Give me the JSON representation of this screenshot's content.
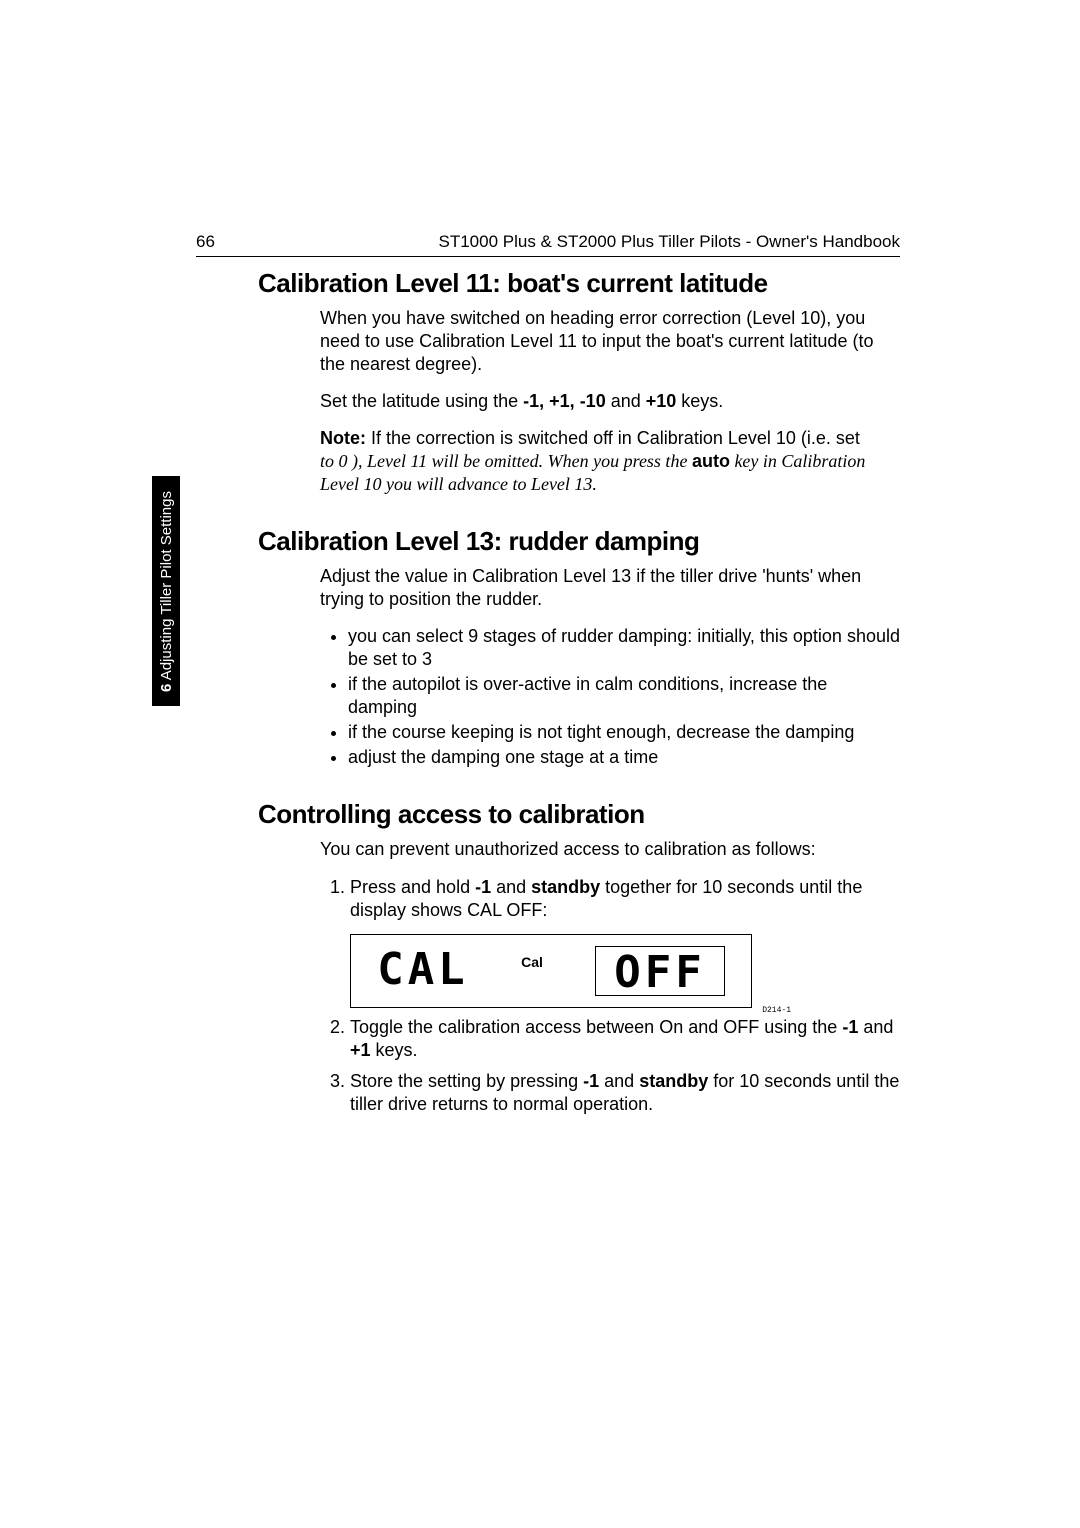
{
  "page_number": "66",
  "running_head": "ST1000 Plus & ST2000 Plus Tiller Pilots - Owner's Handbook",
  "side_tab_chapter": "6",
  "side_tab_text": "Adjusting Tiller Pilot Settings",
  "section1": {
    "title": "Calibration Level 11: boat's current latitude",
    "p1": "When you have switched on heading error correction (Level 10), you need to use Calibration Level 11 to input the boat's current latitude (to the nearest degree).",
    "p2_pre": "Set the latitude using the ",
    "p2_keys": "-1, +1, -10",
    "p2_mid": " and ",
    "p2_key_last": "+10",
    "p2_post": " keys.",
    "note_pre": "Note:",
    "note_a": " If the correction is switched off in Calibration Level 10 (i.e. set",
    "note_b": "to  0  ), Level 11 will be omitted. When you press the ",
    "note_key": "auto",
    "note_c": " key in Calibration Level 10 you will advance to Level 13."
  },
  "section2": {
    "title": "Calibration Level 13: rudder damping",
    "p1": "Adjust the value in Calibration Level 13 if the tiller drive 'hunts' when trying to position the rudder.",
    "b1": "you can select 9 stages of rudder damping: initially, this option should be set to 3",
    "b2": "if the autopilot is over-active in calm conditions, increase the damping",
    "b3": "if the course keeping is not tight enough, decrease the damping",
    "b4": "adjust the damping one stage at a time"
  },
  "section3": {
    "title": "Controlling access to calibration",
    "p1": "You can prevent unauthorized access to calibration as follows:",
    "s1_a": "Press and hold ",
    "s1_k1": "-1",
    "s1_b": " and ",
    "s1_k2": "standby",
    "s1_c": " together for 10 seconds until the display shows ",
    "s1_d": "CAL OFF",
    "s1_e": ":",
    "s2_a": "Toggle the calibration access between ",
    "s2_on": "On",
    "s2_b": " and ",
    "s2_off": "OFF",
    "s2_c": " using the ",
    "s2_k1": "-1",
    "s2_d": " and ",
    "s2_k2": "+1",
    "s2_e": " keys.",
    "s3_a": "Store the setting by pressing ",
    "s3_k1": "-1",
    "s3_b": " and ",
    "s3_k2": "standby",
    "s3_c": " for 10 seconds until the tiller drive returns to normal operation."
  },
  "lcd": {
    "left": "CAL",
    "cal": "Cal",
    "right": "OFF",
    "ref": "D214-1"
  },
  "colors": {
    "text": "#000000",
    "bg": "#ffffff"
  }
}
